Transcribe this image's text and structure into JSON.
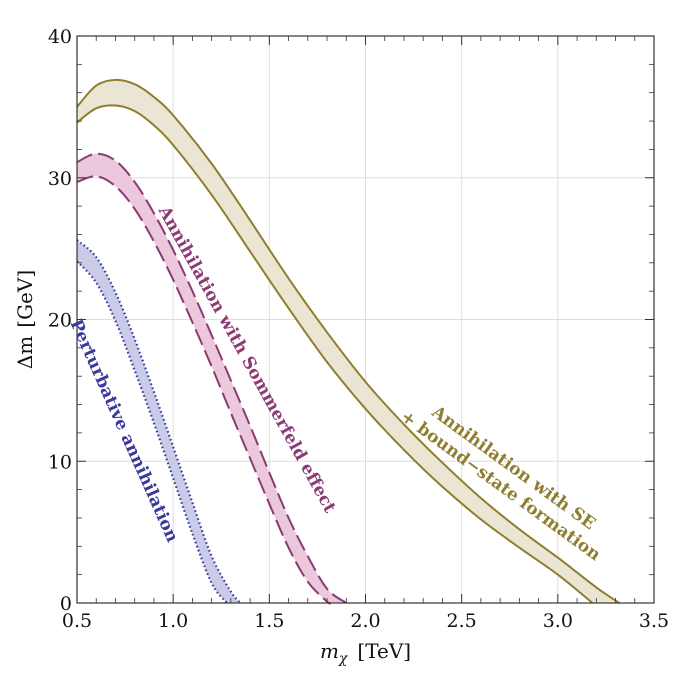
{
  "chart_data": {
    "type": "area",
    "title": "",
    "xlabel": {
      "symbol": "m",
      "subscript": "χ",
      "unit": "[TeV]"
    },
    "ylabel": {
      "symbol": "Δm",
      "unit": "[GeV]"
    },
    "xlim": [
      0.5,
      3.5
    ],
    "ylim": [
      0,
      40
    ],
    "xticks": [
      0.5,
      1.0,
      1.5,
      2.0,
      2.5,
      3.0,
      3.5
    ],
    "xtick_labels": [
      "0.5",
      "1.0",
      "1.5",
      "2.0",
      "2.5",
      "3.0",
      "3.5"
    ],
    "yticks": [
      0,
      10,
      20,
      30,
      40
    ],
    "ytick_labels": [
      "0",
      "10",
      "20",
      "30",
      "40"
    ],
    "grid": true,
    "legend": "none (inline labels)",
    "series": [
      {
        "name": "Perturbative annihilation",
        "label_lines": [
          "Perturbative annihilation"
        ],
        "style": "dotted",
        "color": "#3a3a9a",
        "fill": "#c9cbe8",
        "upper": {
          "x": [
            0.5,
            0.6,
            0.7,
            0.8,
            0.9,
            1.0,
            1.1,
            1.2,
            1.3,
            1.35
          ],
          "y": [
            25.6,
            24.4,
            21.9,
            18.6,
            14.9,
            11.0,
            7.1,
            3.3,
            0.8,
            0.0
          ]
        },
        "lower": {
          "x": [
            0.5,
            0.6,
            0.7,
            0.8,
            0.9,
            1.0,
            1.1,
            1.2,
            1.28
          ],
          "y": [
            24.1,
            22.6,
            19.9,
            16.4,
            12.7,
            8.8,
            4.9,
            1.4,
            0.0
          ]
        }
      },
      {
        "name": "Annihilation with Sommerfeld effect",
        "label_lines": [
          "Annihilation with Sommerfeld effect"
        ],
        "style": "dashed",
        "color": "#8b3a74",
        "fill": "#ecc8dd",
        "upper": {
          "x": [
            0.5,
            0.6,
            0.7,
            0.8,
            0.9,
            1.0,
            1.1,
            1.2,
            1.3,
            1.4,
            1.5,
            1.6,
            1.7,
            1.8,
            1.9
          ],
          "y": [
            31.1,
            31.7,
            31.2,
            29.7,
            27.5,
            24.9,
            22.0,
            18.9,
            15.7,
            12.5,
            9.2,
            6.0,
            3.3,
            1.0,
            0.0
          ]
        },
        "lower": {
          "x": [
            0.5,
            0.6,
            0.7,
            0.8,
            0.9,
            1.0,
            1.1,
            1.2,
            1.3,
            1.4,
            1.5,
            1.6,
            1.7,
            1.8,
            1.82
          ],
          "y": [
            29.7,
            30.1,
            29.4,
            27.8,
            25.5,
            22.8,
            19.8,
            16.7,
            13.4,
            10.2,
            7.0,
            3.9,
            1.5,
            0.1,
            0.0
          ]
        }
      },
      {
        "name": "Annihilation with SE + bound-state formation",
        "label_lines": [
          "Annihilation with SE",
          "+ bound−state formation"
        ],
        "style": "solid",
        "color": "#8e7e2e",
        "fill": "#ebe6d3",
        "upper": {
          "x": [
            0.5,
            0.6,
            0.7,
            0.8,
            0.9,
            1.0,
            1.2,
            1.4,
            1.6,
            1.8,
            2.0,
            2.2,
            2.4,
            2.6,
            2.8,
            3.0,
            3.2,
            3.32
          ],
          "y": [
            35.0,
            36.5,
            36.9,
            36.6,
            35.7,
            34.4,
            31.0,
            27.0,
            22.9,
            19.1,
            15.6,
            12.6,
            9.9,
            7.4,
            5.2,
            3.2,
            1.1,
            0.0
          ]
        },
        "lower": {
          "x": [
            0.5,
            0.6,
            0.7,
            0.8,
            0.9,
            1.0,
            1.2,
            1.4,
            1.6,
            1.8,
            2.0,
            2.2,
            2.4,
            2.6,
            2.8,
            3.0,
            3.18
          ],
          "y": [
            33.9,
            34.9,
            35.1,
            34.7,
            33.7,
            32.3,
            28.8,
            24.8,
            20.8,
            17.0,
            13.7,
            10.8,
            8.2,
            5.9,
            3.9,
            2.0,
            0.0
          ]
        }
      }
    ]
  }
}
